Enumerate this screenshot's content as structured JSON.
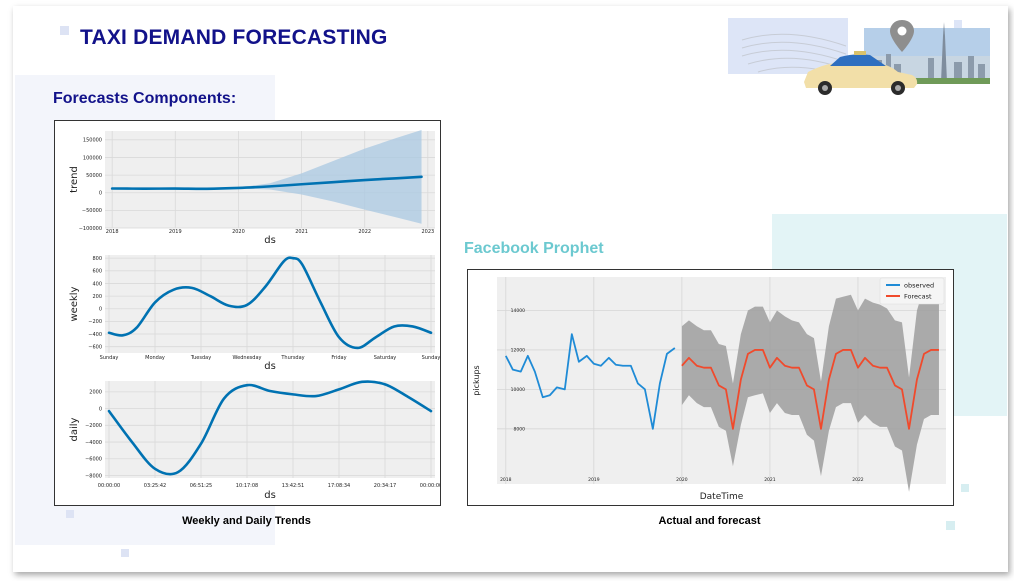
{
  "slide": {
    "title": "TAXI DEMAND FORECASTING",
    "subtitle": "Forecasts Components:",
    "prophet_label": "Facebook Prophet",
    "left_caption": "Weekly and Daily Trends",
    "right_caption": "Actual and forecast"
  },
  "colors": {
    "title": "#12128a",
    "prophet": "#6cc9d0",
    "series_blue": "#0072B2",
    "observed": "#1f8bd6",
    "forecast": "#f04a2c",
    "band": "#9e9e9e"
  },
  "chart_data": [
    {
      "type": "line",
      "name": "trend-panel",
      "xlabel": "ds",
      "ylabel": "trend",
      "x_ticks": [
        "2018",
        "2019",
        "2020",
        "2021",
        "2022",
        "2023"
      ],
      "y_ticks": [
        -100000,
        -50000,
        0,
        50000,
        100000,
        150000
      ],
      "ylim": [
        -100000,
        175000
      ],
      "xlim": [
        2017.95,
        2023.05
      ],
      "x": [
        2018.0,
        2018.5,
        2019.0,
        2019.5,
        2020.0,
        2020.5,
        2021.0,
        2021.5,
        2022.0,
        2022.5,
        2022.9
      ],
      "values": [
        12000,
        11500,
        11800,
        11200,
        13500,
        18000,
        24000,
        30000,
        36000,
        41000,
        45000
      ],
      "band_upper": [
        12000,
        11500,
        11800,
        11200,
        14500,
        27000,
        55000,
        90000,
        125000,
        155000,
        178000
      ],
      "band_lower": [
        12000,
        11500,
        11800,
        11200,
        12500,
        9000,
        -5000,
        -25000,
        -48000,
        -70000,
        -88000
      ],
      "band_start_x": 2020.0
    },
    {
      "type": "line",
      "name": "weekly-panel",
      "xlabel": "ds",
      "ylabel": "weekly",
      "x_ticks": [
        "Sunday",
        "Monday",
        "Tuesday",
        "Wednesday",
        "Thursday",
        "Friday",
        "Saturday",
        "Sunday"
      ],
      "y_ticks": [
        -600,
        -400,
        -200,
        0,
        200,
        400,
        600,
        800
      ],
      "ylim": [
        -700,
        850
      ],
      "x": [
        0,
        0.3,
        0.6,
        1.0,
        1.4,
        1.8,
        2.2,
        2.6,
        3.0,
        3.4,
        3.8,
        4.0,
        4.2,
        4.6,
        5.0,
        5.4,
        5.8,
        6.2,
        6.6,
        7.0
      ],
      "values": [
        -380,
        -420,
        -300,
        100,
        300,
        330,
        200,
        50,
        60,
        350,
        750,
        800,
        700,
        100,
        -450,
        -620,
        -450,
        -280,
        -280,
        -380
      ]
    },
    {
      "type": "line",
      "name": "daily-panel",
      "xlabel": "ds",
      "ylabel": "daily",
      "x_ticks": [
        "00:00:00",
        "03:25:42",
        "06:51:25",
        "10:17:08",
        "13:42:51",
        "17:08:34",
        "20:34:17",
        "00:00:00"
      ],
      "y_ticks": [
        -8000,
        -6000,
        -4000,
        -2000,
        0,
        2000
      ],
      "ylim": [
        -8300,
        3300
      ],
      "x": [
        0,
        0.5,
        1.0,
        1.5,
        2.0,
        2.5,
        3.0,
        3.5,
        4.0,
        4.5,
        5.0,
        5.5,
        6.0,
        6.5,
        7.0
      ],
      "values": [
        -300,
        -4000,
        -7200,
        -7600,
        -4200,
        1200,
        2800,
        2100,
        1700,
        1500,
        2300,
        3200,
        2900,
        1400,
        -300
      ]
    },
    {
      "type": "line",
      "name": "forecast-panel",
      "xlabel": "DateTime",
      "ylabel": "pickups",
      "x_ticks": [
        "2018",
        "2019",
        "2020",
        "2021",
        "2022"
      ],
      "y_ticks": [
        8000,
        10000,
        12000,
        14000
      ],
      "ylim": [
        5200,
        15700
      ],
      "xlim": [
        2017.9,
        2023.0
      ],
      "legend": {
        "position": "top-right",
        "entries": [
          "observed",
          "Forecast"
        ]
      },
      "series": [
        {
          "name": "observed",
          "x": [
            2018.0,
            2018.08,
            2018.17,
            2018.25,
            2018.33,
            2018.42,
            2018.5,
            2018.58,
            2018.67,
            2018.75,
            2018.83,
            2018.92,
            2019.0,
            2019.08,
            2019.17,
            2019.25,
            2019.33,
            2019.42,
            2019.5,
            2019.58,
            2019.67,
            2019.75,
            2019.83,
            2019.92
          ],
          "values": [
            11700,
            11000,
            10900,
            11700,
            10900,
            9600,
            9700,
            10100,
            10000,
            12800,
            11400,
            11700,
            11300,
            11200,
            11600,
            11250,
            11200,
            11200,
            10300,
            10000,
            8000,
            10300,
            11800,
            12100
          ]
        },
        {
          "name": "Forecast",
          "x": [
            2020.0,
            2020.08,
            2020.17,
            2020.25,
            2020.33,
            2020.42,
            2020.5,
            2020.58,
            2020.67,
            2020.75,
            2020.83,
            2020.92,
            2021.0,
            2021.08,
            2021.17,
            2021.25,
            2021.33,
            2021.42,
            2021.5,
            2021.58,
            2021.67,
            2021.75,
            2021.83,
            2021.92,
            2022.0,
            2022.08,
            2022.17,
            2022.25,
            2022.33,
            2022.42,
            2022.5,
            2022.58,
            2022.67,
            2022.75,
            2022.83,
            2022.92
          ],
          "values": [
            11200,
            11600,
            11200,
            11100,
            11100,
            10200,
            10000,
            8000,
            10500,
            11800,
            12000,
            12000,
            11100,
            11600,
            11200,
            11100,
            11100,
            10200,
            10000,
            8000,
            10500,
            11800,
            12000,
            12000,
            11100,
            11600,
            11200,
            11100,
            11100,
            10200,
            10000,
            8000,
            10500,
            11800,
            12000,
            12000
          ],
          "upper": [
            13200,
            13500,
            13200,
            13000,
            13000,
            12300,
            12200,
            10300,
            12800,
            14000,
            14200,
            14200,
            13400,
            14000,
            13700,
            13500,
            13400,
            12800,
            12600,
            10400,
            13200,
            14600,
            14700,
            14800,
            14000,
            14600,
            14400,
            14300,
            14100,
            13500,
            13400,
            10600,
            14000,
            15200,
            15400,
            15500
          ],
          "lower": [
            9200,
            9700,
            9300,
            9100,
            9100,
            8100,
            7900,
            6100,
            8200,
            9600,
            9700,
            9800,
            8800,
            9300,
            8800,
            8700,
            8700,
            7700,
            7400,
            5600,
            7900,
            9100,
            9300,
            9300,
            8300,
            8700,
            8300,
            8100,
            8100,
            7100,
            6900,
            4800,
            7200,
            8500,
            8700,
            8700
          ]
        }
      ]
    }
  ]
}
